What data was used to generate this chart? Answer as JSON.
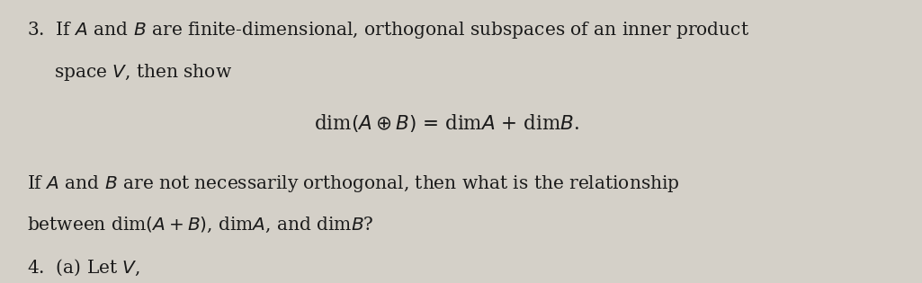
{
  "background_color": "#d4d0c8",
  "text_color": "#1a1a1a",
  "fig_width": 10.25,
  "fig_height": 3.15,
  "dpi": 100,
  "line1": "3.  If $A$ and $B$ are finite-dimensional, orthogonal subspaces of an inner product",
  "line2": "    space $V$, then show",
  "line3": "dim$(A \\oplus B)$ = dim$A$ + dim$B$.",
  "line4": "If $A$ and $B$ are not necessarily orthogonal, then what is the relationship",
  "line5": "between dim$(A + B)$, dim$A$, and dim$B$?",
  "line6": "4.  (a)  Let $V$,",
  "fontsize_main": 14.5,
  "fontsize_formula": 15.5
}
